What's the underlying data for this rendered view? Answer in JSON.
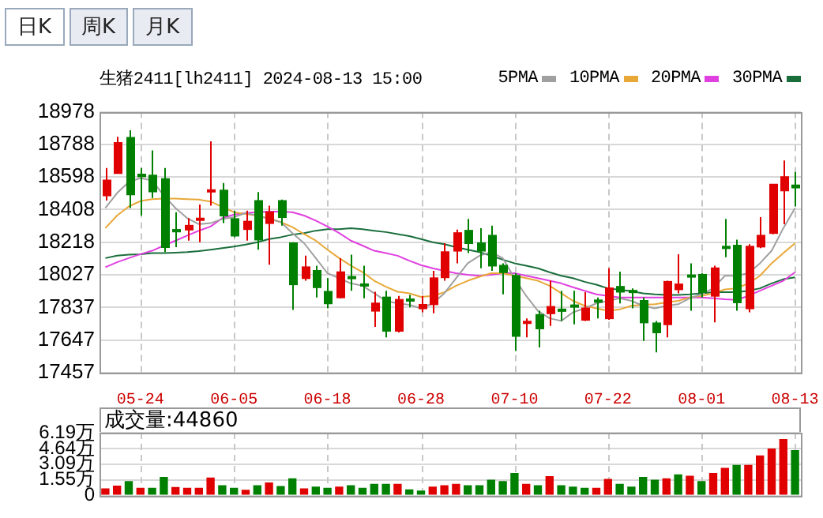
{
  "chart_data": [
    {
      "type": "candlestick",
      "title": "生猪2411[lh2411] 2024-08-13 15:00",
      "annotations": [
        "日K",
        "周K",
        "月K"
      ],
      "categories": [
        null,
        null,
        null,
        "05-24",
        null,
        null,
        null,
        null,
        null,
        null,
        null,
        "06-05",
        null,
        null,
        null,
        null,
        null,
        null,
        null,
        "06-18",
        null,
        null,
        null,
        null,
        null,
        null,
        null,
        "06-28",
        null,
        null,
        null,
        null,
        null,
        null,
        null,
        "07-10",
        null,
        null,
        null,
        null,
        null,
        null,
        null,
        "07-22",
        null,
        null,
        null,
        null,
        null,
        null,
        null,
        "08-01",
        null,
        null,
        null,
        null,
        null,
        null,
        null,
        "08-13"
      ],
      "ohlc": [
        [
          18490,
          18651,
          18461,
          18578
        ],
        [
          18621,
          18832,
          18621,
          18797
        ],
        [
          18826,
          18870,
          18417,
          18496
        ],
        [
          18612,
          18651,
          18373,
          18602
        ],
        [
          18607,
          18753,
          18475,
          18513
        ],
        [
          18586,
          18651,
          18160,
          18189
        ],
        [
          18290,
          18393,
          18189,
          18280
        ],
        [
          18291,
          18358,
          18227,
          18314
        ],
        [
          18350,
          18437,
          18218,
          18356
        ],
        [
          18516,
          18806,
          18431,
          18522
        ],
        [
          18519,
          18563,
          18329,
          18373
        ],
        [
          18353,
          18402,
          18247,
          18256
        ],
        [
          18294,
          18402,
          18227,
          18338
        ],
        [
          18458,
          18510,
          18174,
          18233
        ],
        [
          18329,
          18431,
          18086,
          18393
        ],
        [
          18458,
          18466,
          18314,
          18364
        ],
        [
          18212,
          18218,
          17823,
          17972
        ],
        [
          18008,
          18139,
          17993,
          18072
        ],
        [
          18051,
          18081,
          17896,
          17955
        ],
        [
          17929,
          18008,
          17832,
          17861
        ],
        [
          17896,
          18125,
          17891,
          18043
        ],
        [
          18016,
          18145,
          17935,
          18008
        ],
        [
          17973,
          18081,
          17891,
          17967
        ],
        [
          17818,
          17929,
          17724,
          17861
        ],
        [
          17896,
          17935,
          17663,
          17701
        ],
        [
          17701,
          17905,
          17692,
          17882
        ],
        [
          17885,
          17911,
          17838,
          17878
        ],
        [
          17832,
          17905,
          17809,
          17853
        ],
        [
          17856,
          18051,
          17803,
          18008
        ],
        [
          18013,
          18212,
          17993,
          18160
        ],
        [
          18168,
          18291,
          18095,
          18271
        ],
        [
          18285,
          18353,
          18154,
          18212
        ],
        [
          18212,
          18300,
          18066,
          18168
        ],
        [
          18256,
          18314,
          18051,
          18081
        ],
        [
          18081,
          18095,
          17914,
          18043
        ],
        [
          18022,
          18037,
          17584,
          17671
        ],
        [
          17748,
          17774,
          17663,
          17755
        ],
        [
          17794,
          17818,
          17604,
          17715
        ],
        [
          17803,
          17993,
          17730,
          17841
        ],
        [
          17826,
          17935,
          17759,
          17820
        ],
        [
          17850,
          17935,
          17739,
          17844
        ],
        [
          17765,
          17926,
          17759,
          17832
        ],
        [
          17879,
          17896,
          17774,
          17873
        ],
        [
          17774,
          18066,
          17765,
          17949
        ],
        [
          17958,
          18046,
          17861,
          17929
        ],
        [
          17935,
          17949,
          17832,
          17926
        ],
        [
          17876,
          17896,
          17642,
          17750
        ],
        [
          17745,
          17759,
          17575,
          17692
        ],
        [
          17739,
          17993,
          17663,
          17987
        ],
        [
          17943,
          18148,
          17920,
          17972
        ],
        [
          18025,
          18095,
          17818,
          18019
        ],
        [
          18028,
          18037,
          17896,
          17926
        ],
        [
          17905,
          18081,
          17750,
          18066
        ],
        [
          18192,
          18353,
          18130,
          18186
        ],
        [
          18198,
          18233,
          17818,
          17867
        ],
        [
          17832,
          18206,
          17809,
          18192
        ],
        [
          18192,
          18364,
          18183,
          18256
        ],
        [
          18271,
          18557,
          18265,
          18554
        ],
        [
          18519,
          18694,
          18323,
          18598
        ],
        [
          18549,
          18627,
          18426,
          18537
        ]
      ],
      "colors": [
        "#e00000",
        "#e00000",
        "#008000",
        "#008000",
        "#008000",
        "#008000",
        "#008000",
        "#e00000",
        "#e00000",
        "#e00000",
        "#008000",
        "#008000",
        "#e00000",
        "#008000",
        "#e00000",
        "#008000",
        "#008000",
        "#e00000",
        "#008000",
        "#008000",
        "#e00000",
        "#008000",
        "#008000",
        "#e00000",
        "#008000",
        "#e00000",
        "#008000",
        "#e00000",
        "#e00000",
        "#e00000",
        "#e00000",
        "#008000",
        "#008000",
        "#008000",
        "#008000",
        "#008000",
        "#e00000",
        "#008000",
        "#e00000",
        "#008000",
        "#008000",
        "#e00000",
        "#008000",
        "#e00000",
        "#008000",
        "#008000",
        "#008000",
        "#008000",
        "#e00000",
        "#e00000",
        "#008000",
        "#008000",
        "#e00000",
        "#008000",
        "#008000",
        "#e00000",
        "#e00000",
        "#e00000",
        "#e00000",
        "#008000"
      ],
      "series": [
        {
          "name": "5PMA",
          "type": "line",
          "color": "#a0a0a0",
          "values": [
            18417,
            18504,
            18569,
            18592,
            18578,
            18490,
            18417,
            18358,
            18323,
            18329,
            18353,
            18364,
            18388,
            18373,
            18353,
            18335,
            18271,
            18212,
            18125,
            18037,
            18008,
            17978,
            17964,
            17920,
            17876,
            17861,
            17853,
            17832,
            17861,
            17920,
            18008,
            18095,
            18139,
            18160,
            18125,
            18008,
            17905,
            17818,
            17774,
            17759,
            17809,
            17832,
            17861,
            17876,
            17891,
            17876,
            17847,
            17832,
            17847,
            17856,
            17891,
            17914,
            17949,
            18022,
            18022,
            18037,
            18095,
            18168,
            18300,
            18417
          ]
        },
        {
          "name": "10PMA",
          "type": "line",
          "color": "#e8a838",
          "values": [
            18300,
            18373,
            18426,
            18458,
            18469,
            18472,
            18472,
            18469,
            18466,
            18455,
            18423,
            18393,
            18382,
            18373,
            18358,
            18335,
            18306,
            18265,
            18227,
            18174,
            18125,
            18081,
            18043,
            17993,
            17958,
            17929,
            17920,
            17899,
            17905,
            17926,
            17964,
            17993,
            18016,
            18037,
            18037,
            18022,
            18008,
            17993,
            17964,
            17920,
            17876,
            17847,
            17832,
            17818,
            17826,
            17847,
            17853,
            17856,
            17867,
            17876,
            17896,
            17905,
            17920,
            17943,
            17949,
            17978,
            18022,
            18095,
            18154,
            18212
          ]
        },
        {
          "name": "20PMA",
          "type": "line",
          "color": "#e040e0",
          "values": [
            18072,
            18101,
            18125,
            18148,
            18168,
            18198,
            18227,
            18256,
            18285,
            18309,
            18358,
            18379,
            18388,
            18393,
            18396,
            18396,
            18393,
            18373,
            18344,
            18309,
            18271,
            18227,
            18198,
            18168,
            18154,
            18139,
            18110,
            18084,
            18066,
            18051,
            18037,
            18028,
            18022,
            18028,
            18037,
            18037,
            18022,
            18008,
            17993,
            17978,
            17955,
            17935,
            17914,
            17905,
            17896,
            17896,
            17896,
            17896,
            17896,
            17896,
            17896,
            17896,
            17891,
            17885,
            17882,
            17905,
            17935,
            17964,
            17993,
            18043
          ]
        },
        {
          "name": "30PMA",
          "type": "line",
          "color": "#1a6e3c",
          "values": [
            18125,
            18139,
            18145,
            18148,
            18154,
            18154,
            18157,
            18160,
            18166,
            18174,
            18183,
            18192,
            18204,
            18218,
            18236,
            18247,
            18262,
            18271,
            18285,
            18294,
            18294,
            18300,
            18294,
            18285,
            18277,
            18265,
            18253,
            18236,
            18218,
            18206,
            18189,
            18174,
            18160,
            18139,
            18116,
            18095,
            18081,
            18066,
            18043,
            18022,
            18008,
            17987,
            17970,
            17949,
            17940,
            17932,
            17920,
            17914,
            17911,
            17911,
            17914,
            17920,
            17926,
            17926,
            17926,
            17935,
            17949,
            17978,
            18002,
            18013
          ]
        }
      ],
      "ylim": [
        17457,
        18978
      ],
      "yticks": [
        17457,
        17647,
        17837,
        18027,
        18218,
        18408,
        18598,
        18788,
        18978
      ],
      "grid": true,
      "legend": "top right",
      "marker": "none"
    },
    {
      "type": "bar",
      "title": "成交量:44860",
      "categories": [
        null,
        null,
        null,
        null,
        null,
        null,
        null,
        null,
        null,
        null,
        null,
        null,
        null,
        null,
        null,
        null,
        null,
        null,
        null,
        null,
        null,
        null,
        null,
        null,
        null,
        null,
        null,
        null,
        null,
        null,
        null,
        null,
        null,
        null,
        null,
        null,
        null,
        null,
        null,
        null,
        null,
        null,
        null,
        null,
        null,
        null,
        null,
        null,
        null,
        null,
        null,
        null,
        null,
        null,
        null,
        null,
        null,
        null,
        null,
        null
      ],
      "values": [
        0.71,
        0.98,
        1.43,
        0.76,
        0.76,
        1.83,
        0.85,
        0.76,
        0.76,
        1.78,
        1.02,
        0.76,
        0.58,
        1.02,
        1.29,
        0.94,
        1.69,
        0.71,
        0.89,
        0.76,
        0.89,
        1.02,
        0.76,
        1.16,
        1.16,
        1.16,
        0.62,
        0.49,
        0.89,
        1.02,
        1.16,
        1.02,
        1.02,
        1.56,
        1.43,
        2.23,
        1.16,
        1.02,
        1.92,
        1.02,
        0.89,
        0.76,
        0.76,
        1.65,
        1.16,
        0.89,
        1.83,
        1.56,
        1.69,
        2.09,
        1.96,
        1.43,
        2.23,
        2.72,
        3.03,
        3.03,
        3.96,
        4.63,
        5.57,
        4.486
      ],
      "colors": [
        "#e00000",
        "#e00000",
        "#008000",
        "#e00000",
        "#008000",
        "#008000",
        "#e00000",
        "#e00000",
        "#e00000",
        "#e00000",
        "#008000",
        "#008000",
        "#e00000",
        "#008000",
        "#e00000",
        "#008000",
        "#008000",
        "#e00000",
        "#008000",
        "#008000",
        "#e00000",
        "#008000",
        "#008000",
        "#008000",
        "#008000",
        "#e00000",
        "#008000",
        "#008000",
        "#e00000",
        "#e00000",
        "#e00000",
        "#008000",
        "#008000",
        "#008000",
        "#008000",
        "#008000",
        "#e00000",
        "#008000",
        "#e00000",
        "#008000",
        "#008000",
        "#008000",
        "#e00000",
        "#e00000",
        "#008000",
        "#008000",
        "#008000",
        "#008000",
        "#e00000",
        "#008000",
        "#e00000",
        "#008000",
        "#e00000",
        "#e00000",
        "#008000",
        "#e00000",
        "#e00000",
        "#e00000",
        "#e00000",
        "#008000"
      ],
      "ylim": [
        0,
        6.19
      ],
      "yticks": [
        0,
        {
          "value": 1.55,
          "label": "1.55万"
        },
        {
          "value": 3.09,
          "label": "3.09万"
        },
        {
          "value": 4.64,
          "label": "4.64万"
        },
        {
          "value": 6.19,
          "label": "6.19万"
        }
      ],
      "grid": true,
      "tick_labels": "y"
    }
  ]
}
